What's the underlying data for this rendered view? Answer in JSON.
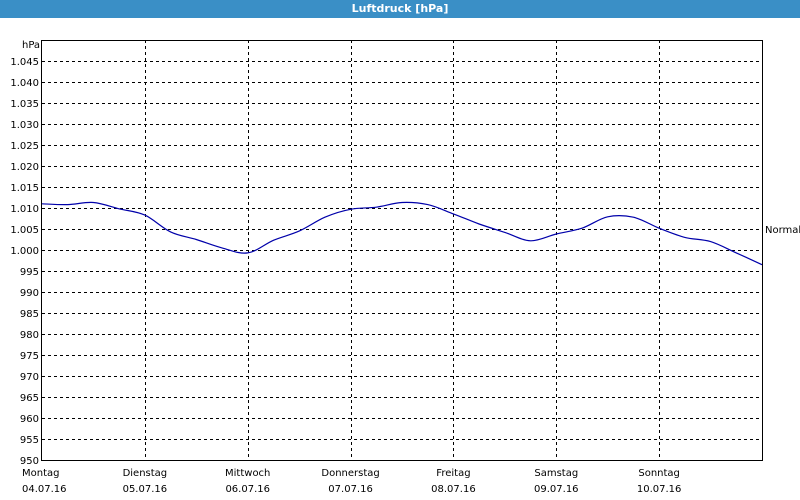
{
  "window": {
    "title": "Luftdruck [hPa]"
  },
  "chart_data": {
    "type": "line",
    "title": "Luftdruck [hPa]",
    "ylabel": "hPa",
    "xlabel": "",
    "ylim": [
      950,
      1050
    ],
    "yticks": [
      "950",
      "955",
      "960",
      "965",
      "970",
      "975",
      "980",
      "985",
      "990",
      "995",
      "1.000",
      "1.005",
      "1.010",
      "1.015",
      "1.020",
      "1.025",
      "1.030",
      "1.035",
      "1.040",
      "1.045"
    ],
    "ytick_values": [
      950,
      955,
      960,
      965,
      970,
      975,
      980,
      985,
      990,
      995,
      1000,
      1005,
      1010,
      1015,
      1020,
      1025,
      1030,
      1035,
      1040,
      1045
    ],
    "xlim": [
      0,
      7
    ],
    "xticks": [
      {
        "day": "Montag",
        "date": "04.07.16"
      },
      {
        "day": "Dienstag",
        "date": "05.07.16"
      },
      {
        "day": "Mittwoch",
        "date": "06.07.16"
      },
      {
        "day": "Donnerstag",
        "date": "07.07.16"
      },
      {
        "day": "Freitag",
        "date": "08.07.16"
      },
      {
        "day": "Samstag",
        "date": "09.07.16"
      },
      {
        "day": "Sonntag",
        "date": "10.07.16"
      }
    ],
    "grid": true,
    "reference_line": {
      "label": "Normal",
      "value": 1005
    },
    "series": [
      {
        "color": "#0000aa",
        "x": [
          0,
          0.25,
          0.5,
          0.75,
          1.0,
          1.25,
          1.5,
          1.75,
          2.0,
          2.25,
          2.5,
          2.75,
          3.0,
          3.25,
          3.5,
          3.75,
          4.0,
          4.25,
          4.5,
          4.75,
          5.0,
          5.25,
          5.5,
          5.75,
          6.0,
          6.25,
          6.5,
          6.75,
          7.0
        ],
        "values": [
          1011,
          1010.8,
          1011.3,
          1009.8,
          1008.3,
          1004.3,
          1002.5,
          1000.5,
          999.3,
          1002.3,
          1004.5,
          1007.8,
          1009.7,
          1010.2,
          1011.3,
          1010.8,
          1008.6,
          1006.2,
          1004.2,
          1002.2,
          1003.8,
          1005.2,
          1007.9,
          1007.8,
          1005.2,
          1003.0,
          1002.0,
          999.3,
          996.5
        ]
      }
    ]
  }
}
